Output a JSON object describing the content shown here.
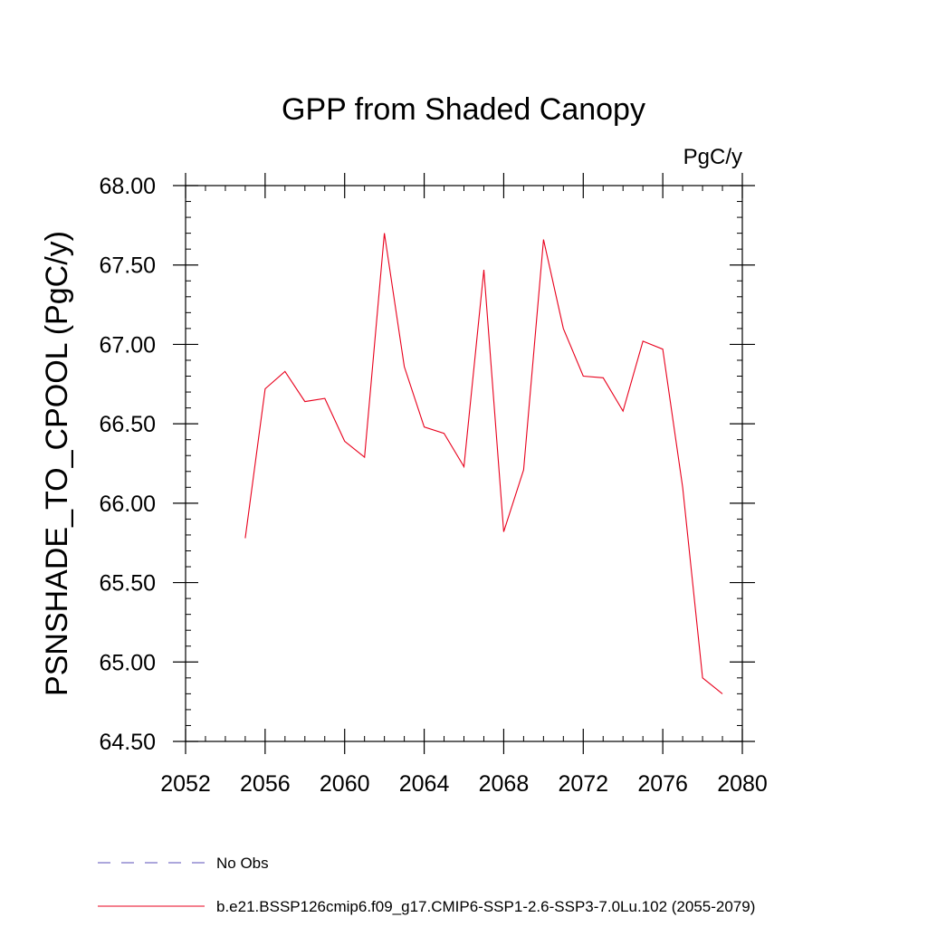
{
  "chart_data": {
    "type": "line",
    "title": "GPP from Shaded Canopy",
    "units": "PgC/y",
    "ylabel": "PSNSHADE_TO_CPOOL  (PgC/y)",
    "xlabel": "",
    "xlim": [
      2052,
      2080
    ],
    "ylim": [
      64.5,
      68.0
    ],
    "x_ticks": [
      "2052",
      "2056",
      "2060",
      "2064",
      "2068",
      "2072",
      "2076",
      "2080"
    ],
    "y_ticks": [
      "64.50",
      "65.00",
      "65.50",
      "66.00",
      "66.50",
      "67.00",
      "67.50",
      "68.00"
    ],
    "grid": false,
    "legend_position": "bottom",
    "series": [
      {
        "name": "b.e21.BSSP126cmip6.f09_g17.CMIP6-SSP1-2.6-SSP3-7.0Lu.102 (2055-2079)",
        "color": "#e8001c",
        "style": "solid",
        "x": [
          2055,
          2056,
          2057,
          2058,
          2059,
          2060,
          2061,
          2062,
          2063,
          2064,
          2065,
          2066,
          2067,
          2068,
          2069,
          2070,
          2071,
          2072,
          2073,
          2074,
          2075,
          2076,
          2077,
          2078,
          2079
        ],
        "y": [
          65.78,
          66.72,
          66.83,
          66.64,
          66.66,
          66.39,
          66.29,
          67.7,
          66.86,
          66.48,
          66.44,
          66.23,
          67.47,
          65.82,
          66.21,
          67.66,
          67.1,
          66.8,
          66.79,
          66.58,
          67.02,
          66.97,
          66.1,
          64.9,
          64.8
        ]
      }
    ],
    "legend": [
      {
        "label": "No Obs",
        "color": "#5a4fb8",
        "style": "dashed"
      },
      {
        "label": "b.e21.BSSP126cmip6.f09_g17.CMIP6-SSP1-2.6-SSP3-7.0Lu.102 (2055-2079)",
        "color": "#e8001c",
        "style": "solid"
      }
    ]
  }
}
